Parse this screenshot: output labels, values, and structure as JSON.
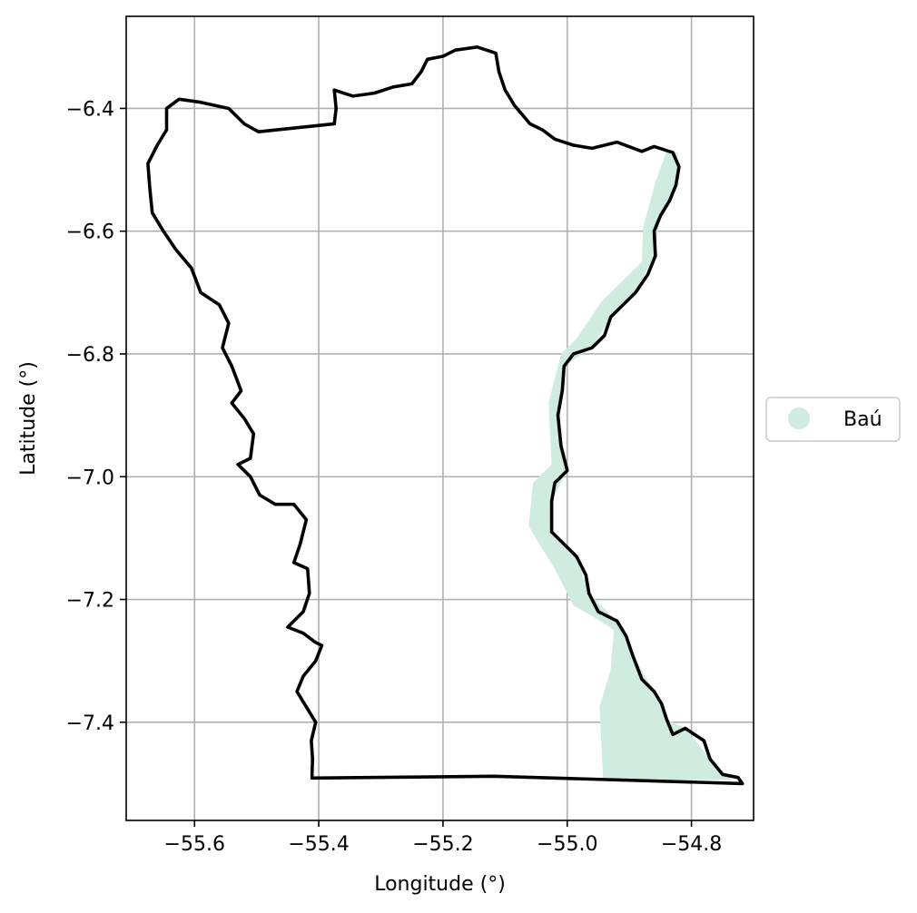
{
  "chart_data": {
    "type": "map",
    "xlabel": "Longitude (°)",
    "ylabel": "Latitude (°)",
    "xlim": [
      -55.71,
      -54.7
    ],
    "ylim": [
      -7.56,
      -6.25
    ],
    "xticks": [
      -55.6,
      -55.4,
      -55.2,
      -55.0,
      -54.8
    ],
    "xtick_labels": [
      "−55.6",
      "−55.4",
      "−55.2",
      "−55.0",
      "−54.8"
    ],
    "yticks": [
      -6.4,
      -6.6,
      -6.8,
      -7.0,
      -7.2,
      -7.4
    ],
    "ytick_labels": [
      "−6.4",
      "−6.6",
      "−6.8",
      "−7.0",
      "−7.2",
      "−7.4"
    ],
    "grid": true,
    "legend": {
      "placement": "center-right-outside",
      "entries": [
        {
          "label": "Baú",
          "color": "#d0ebdf",
          "marker": "circle"
        }
      ]
    },
    "region_fill": {
      "name": "Baú",
      "color": "#d0ebdf"
    },
    "outline_color": "#000000",
    "boundary_outline": [
      [
        -55.411,
        -7.491
      ],
      [
        -55.118,
        -7.488
      ],
      [
        -54.718,
        -7.5
      ],
      [
        -54.725,
        -7.49
      ],
      [
        -54.75,
        -7.485
      ],
      [
        -54.77,
        -7.46
      ],
      [
        -54.78,
        -7.43
      ],
      [
        -54.81,
        -7.41
      ],
      [
        -54.83,
        -7.42
      ],
      [
        -54.84,
        -7.395
      ],
      [
        -54.848,
        -7.37
      ],
      [
        -54.86,
        -7.35
      ],
      [
        -54.88,
        -7.33
      ],
      [
        -54.895,
        -7.29
      ],
      [
        -54.905,
        -7.26
      ],
      [
        -54.92,
        -7.235
      ],
      [
        -54.95,
        -7.22
      ],
      [
        -54.965,
        -7.19
      ],
      [
        -54.97,
        -7.16
      ],
      [
        -54.985,
        -7.13
      ],
      [
        -55.005,
        -7.11
      ],
      [
        -55.025,
        -7.09
      ],
      [
        -55.025,
        -7.04
      ],
      [
        -55.02,
        -7.01
      ],
      [
        -55.0,
        -6.99
      ],
      [
        -55.01,
        -6.95
      ],
      [
        -55.015,
        -6.9
      ],
      [
        -55.008,
        -6.86
      ],
      [
        -55.005,
        -6.82
      ],
      [
        -54.99,
        -6.8
      ],
      [
        -54.96,
        -6.79
      ],
      [
        -54.94,
        -6.77
      ],
      [
        -54.93,
        -6.74
      ],
      [
        -54.91,
        -6.72
      ],
      [
        -54.89,
        -6.7
      ],
      [
        -54.87,
        -6.67
      ],
      [
        -54.858,
        -6.64
      ],
      [
        -54.86,
        -6.6
      ],
      [
        -54.85,
        -6.575
      ],
      [
        -54.835,
        -6.55
      ],
      [
        -54.825,
        -6.525
      ],
      [
        -54.82,
        -6.495
      ],
      [
        -54.83,
        -6.472
      ],
      [
        -54.86,
        -6.462
      ],
      [
        -54.88,
        -6.47
      ],
      [
        -54.92,
        -6.455
      ],
      [
        -54.96,
        -6.465
      ],
      [
        -54.99,
        -6.46
      ],
      [
        -55.02,
        -6.45
      ],
      [
        -55.04,
        -6.435
      ],
      [
        -55.06,
        -6.425
      ],
      [
        -55.085,
        -6.395
      ],
      [
        -55.1,
        -6.37
      ],
      [
        -55.11,
        -6.34
      ],
      [
        -55.115,
        -6.31
      ],
      [
        -55.145,
        -6.3
      ],
      [
        -55.18,
        -6.305
      ],
      [
        -55.2,
        -6.315
      ],
      [
        -55.225,
        -6.32
      ],
      [
        -55.235,
        -6.34
      ],
      [
        -55.25,
        -6.36
      ],
      [
        -55.28,
        -6.365
      ],
      [
        -55.31,
        -6.375
      ],
      [
        -55.345,
        -6.38
      ],
      [
        -55.375,
        -6.37
      ],
      [
        -55.372,
        -6.4
      ],
      [
        -55.375,
        -6.425
      ],
      [
        -55.497,
        -6.438
      ],
      [
        -55.52,
        -6.425
      ],
      [
        -55.545,
        -6.4
      ],
      [
        -55.59,
        -6.39
      ],
      [
        -55.625,
        -6.385
      ],
      [
        -55.645,
        -6.4
      ],
      [
        -55.645,
        -6.435
      ],
      [
        -55.66,
        -6.46
      ],
      [
        -55.675,
        -6.49
      ],
      [
        -55.672,
        -6.53
      ],
      [
        -55.668,
        -6.57
      ],
      [
        -55.65,
        -6.6
      ],
      [
        -55.63,
        -6.63
      ],
      [
        -55.605,
        -6.66
      ],
      [
        -55.59,
        -6.7
      ],
      [
        -55.56,
        -6.72
      ],
      [
        -55.545,
        -6.75
      ],
      [
        -55.555,
        -6.79
      ],
      [
        -55.54,
        -6.82
      ],
      [
        -55.525,
        -6.86
      ],
      [
        -55.54,
        -6.88
      ],
      [
        -55.52,
        -6.905
      ],
      [
        -55.505,
        -6.93
      ],
      [
        -55.51,
        -6.97
      ],
      [
        -55.53,
        -6.98
      ],
      [
        -55.51,
        -7.0
      ],
      [
        -55.495,
        -7.03
      ],
      [
        -55.47,
        -7.045
      ],
      [
        -55.44,
        -7.045
      ],
      [
        -55.42,
        -7.07
      ],
      [
        -55.43,
        -7.11
      ],
      [
        -55.44,
        -7.14
      ],
      [
        -55.418,
        -7.15
      ],
      [
        -55.415,
        -7.19
      ],
      [
        -55.425,
        -7.22
      ],
      [
        -55.45,
        -7.245
      ],
      [
        -55.425,
        -7.255
      ],
      [
        -55.405,
        -7.27
      ],
      [
        -55.395,
        -7.275
      ],
      [
        -55.405,
        -7.3
      ],
      [
        -55.425,
        -7.325
      ],
      [
        -55.435,
        -7.35
      ],
      [
        -55.42,
        -7.375
      ],
      [
        -55.405,
        -7.4
      ],
      [
        -55.412,
        -7.43
      ],
      [
        -55.41,
        -7.46
      ],
      [
        -55.411,
        -7.491
      ]
    ],
    "bau_region": [
      [
        -54.942,
        -7.494
      ],
      [
        -54.948,
        -7.375
      ],
      [
        -54.93,
        -7.315
      ],
      [
        -54.925,
        -7.25
      ],
      [
        -54.955,
        -7.23
      ],
      [
        -54.99,
        -7.21
      ],
      [
        -55.02,
        -7.15
      ],
      [
        -55.045,
        -7.11
      ],
      [
        -55.062,
        -7.08
      ],
      [
        -55.055,
        -7.01
      ],
      [
        -55.025,
        -6.98
      ],
      [
        -55.03,
        -6.88
      ],
      [
        -55.01,
        -6.8
      ],
      [
        -54.985,
        -6.775
      ],
      [
        -54.945,
        -6.715
      ],
      [
        -54.92,
        -6.69
      ],
      [
        -54.88,
        -6.65
      ],
      [
        -54.878,
        -6.595
      ],
      [
        -54.858,
        -6.52
      ],
      [
        -54.84,
        -6.47
      ],
      [
        -54.822,
        -6.472
      ],
      [
        -54.825,
        -6.525
      ],
      [
        -54.85,
        -6.575
      ],
      [
        -54.86,
        -6.64
      ],
      [
        -54.89,
        -6.7
      ],
      [
        -54.93,
        -6.74
      ],
      [
        -54.96,
        -6.79
      ],
      [
        -55.005,
        -6.82
      ],
      [
        -55.015,
        -6.9
      ],
      [
        -55.0,
        -6.99
      ],
      [
        -55.025,
        -7.04
      ],
      [
        -55.025,
        -7.09
      ],
      [
        -54.985,
        -7.13
      ],
      [
        -54.965,
        -7.19
      ],
      [
        -54.92,
        -7.235
      ],
      [
        -54.895,
        -7.29
      ],
      [
        -54.86,
        -7.35
      ],
      [
        -54.84,
        -7.395
      ],
      [
        -54.81,
        -7.41
      ],
      [
        -54.77,
        -7.46
      ],
      [
        -54.735,
        -7.494
      ]
    ]
  }
}
